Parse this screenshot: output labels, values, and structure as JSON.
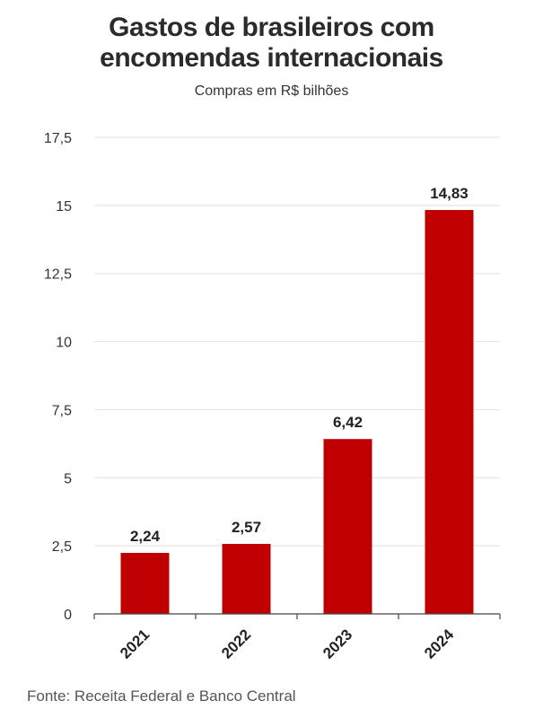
{
  "title_line1": "Gastos de brasileiros com",
  "title_line2": "encomendas internacionais",
  "subtitle": "Compras em R$ bilhões",
  "source": "Fonte: Receita Federal e Banco Central",
  "colors": {
    "bar": "#c00000",
    "grid": "#e6e6e6",
    "axis": "#444444",
    "text": "#222222"
  },
  "chart_data": {
    "type": "bar",
    "categories": [
      "2021",
      "2022",
      "2023",
      "2024"
    ],
    "values": [
      2.24,
      2.57,
      6.42,
      14.83
    ],
    "value_labels": [
      "2,24",
      "2,57",
      "6,42",
      "14,83"
    ],
    "yticks": [
      0,
      2.5,
      5,
      7.5,
      10,
      12.5,
      15,
      17.5
    ],
    "ytick_labels": [
      "0",
      "2,5",
      "5",
      "7,5",
      "10",
      "12,5",
      "15",
      "17,5"
    ],
    "ylim": [
      0,
      17.5
    ],
    "grid": true,
    "xlabel": "",
    "ylabel": ""
  }
}
